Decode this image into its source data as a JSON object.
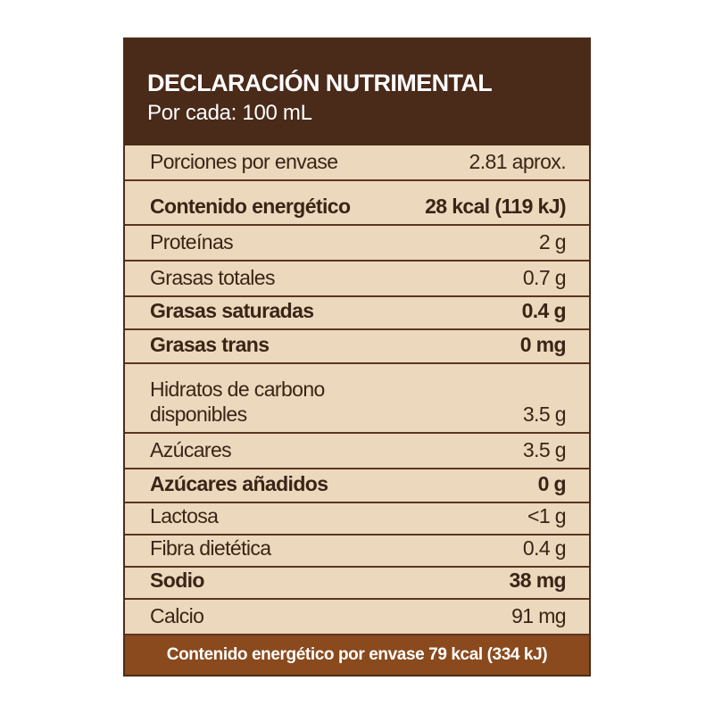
{
  "header": {
    "title": "DECLARACIÓN NUTRIMENTAL",
    "subtitle": "Por cada: 100 mL"
  },
  "table": {
    "rows": [
      {
        "label": "Porciones por envase",
        "value": "2.81 aprox.",
        "bold": false
      },
      {
        "label": "Contenido energético",
        "value": "28 kcal (119 kJ)",
        "bold": true
      },
      {
        "label": "Proteínas",
        "value": "2 g",
        "bold": false
      },
      {
        "label": "Grasas totales",
        "value": "0.7 g",
        "bold": false
      },
      {
        "label": "Grasas saturadas",
        "value": "0.4 g",
        "bold": true
      },
      {
        "label": "Grasas trans",
        "value": "0 mg",
        "bold": true
      },
      {
        "label": "Hidratos de carbono\ndisponibles",
        "value": "3.5 g",
        "bold": false
      },
      {
        "label": "Azúcares",
        "value": "3.5 g",
        "bold": false
      },
      {
        "label": "Azúcares añadidos",
        "value": "0 g",
        "bold": true
      },
      {
        "label": "Lactosa",
        "value": "<1 g",
        "bold": false
      },
      {
        "label": "Fibra dietética",
        "value": "0.4 g",
        "bold": false
      },
      {
        "label": "Sodio",
        "value": "38 mg",
        "bold": true
      },
      {
        "label": "Calcio",
        "value": "91 mg",
        "bold": false
      }
    ]
  },
  "footer": {
    "text": "Contenido energético por envase 79 kcal (334 kJ)"
  }
}
